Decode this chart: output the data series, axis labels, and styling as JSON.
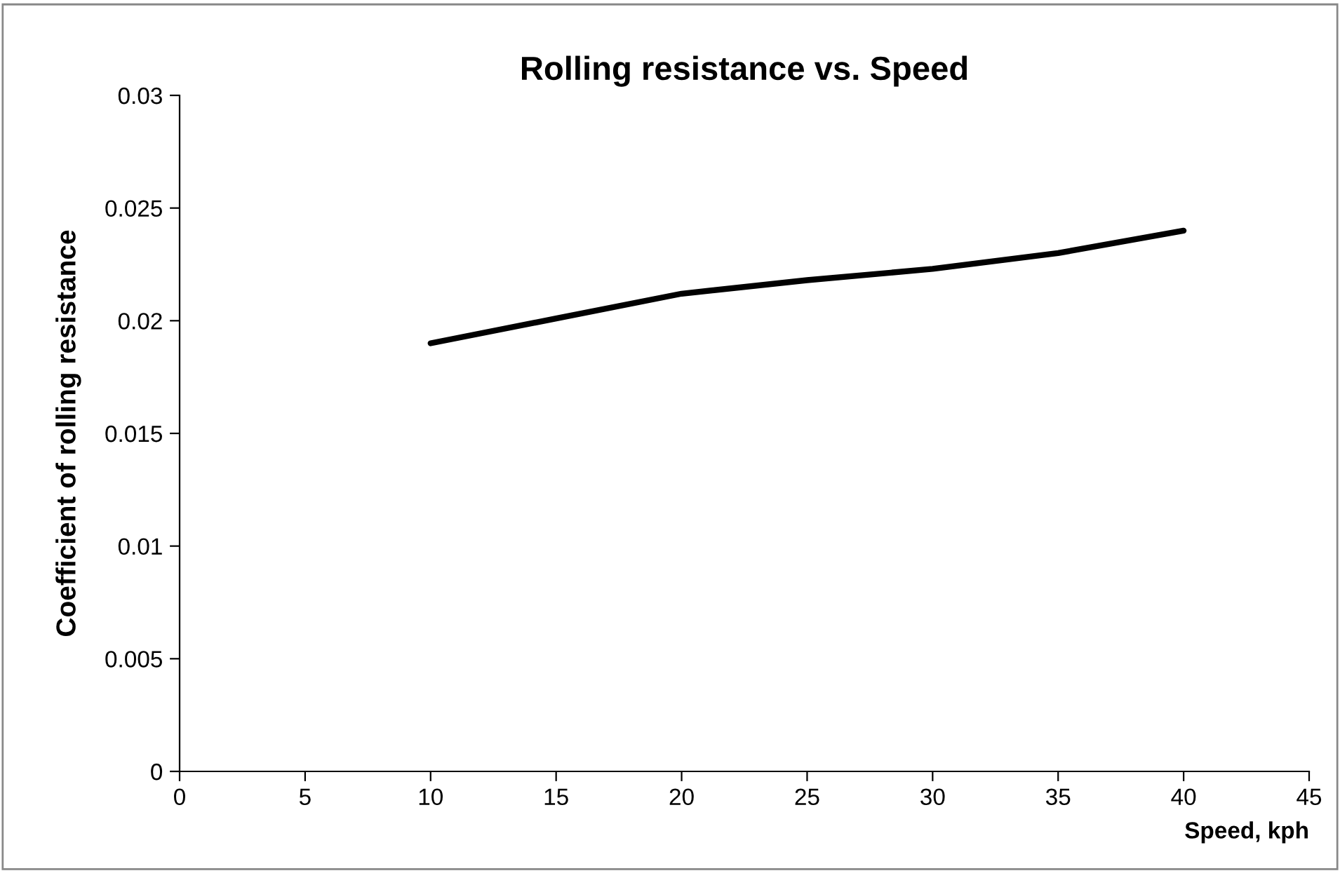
{
  "chart_data": {
    "type": "line",
    "title": "Rolling resistance vs. Speed",
    "xlabel": "Speed, kph",
    "ylabel": "Coefficient of rolling resistance",
    "x": [
      10,
      15,
      20,
      25,
      30,
      35,
      40
    ],
    "series": [
      {
        "color": "#000000",
        "values": [
          0.019,
          0.0201,
          0.0212,
          0.0218,
          0.0223,
          0.023,
          0.024
        ]
      }
    ],
    "xlim": [
      0,
      45
    ],
    "xticks": [
      0,
      5,
      10,
      15,
      20,
      25,
      30,
      35,
      40,
      45
    ],
    "ylim": [
      0,
      0.03
    ],
    "yticks": [
      0,
      0.005,
      0.01,
      0.015,
      0.02,
      0.025,
      0.03
    ],
    "grid": false,
    "legend": false,
    "marker": "none",
    "line_style": "solid"
  }
}
